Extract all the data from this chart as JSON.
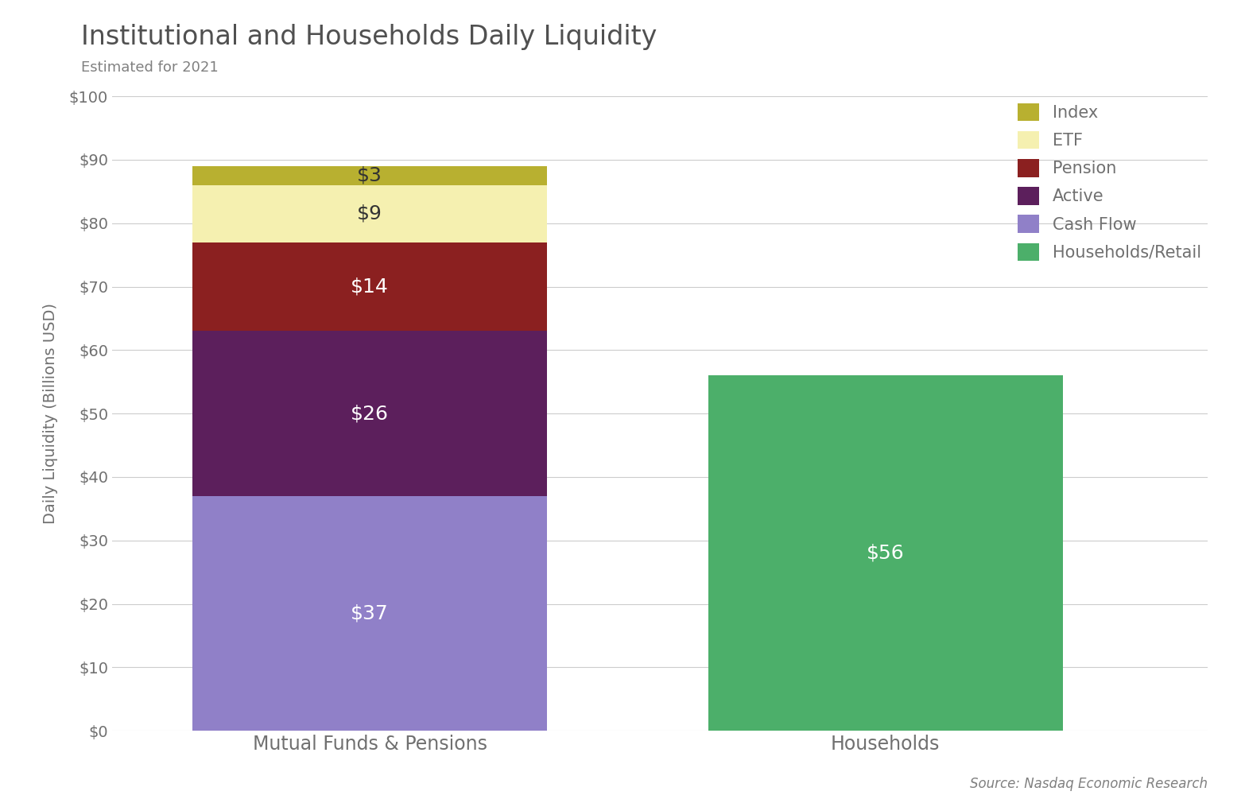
{
  "title": "Institutional and Households Daily Liquidity",
  "subtitle": "Estimated for 2021",
  "ylabel": "Daily Liquidity (Billions USD)",
  "source": "Source: Nasdaq Economic Research",
  "categories": [
    "Mutual Funds & Pensions",
    "Households"
  ],
  "segments": [
    {
      "label": "Cash Flow",
      "color": "#9080C8",
      "values": [
        37,
        0
      ],
      "text_colors": [
        "white",
        null
      ]
    },
    {
      "label": "Active",
      "color": "#5C1F5C",
      "values": [
        26,
        0
      ],
      "text_colors": [
        "white",
        null
      ]
    },
    {
      "label": "Pension",
      "color": "#8B2020",
      "values": [
        14,
        0
      ],
      "text_colors": [
        "white",
        null
      ]
    },
    {
      "label": "ETF",
      "color": "#F5F0B0",
      "values": [
        9,
        0
      ],
      "text_colors": [
        "#333333",
        null
      ]
    },
    {
      "label": "Index",
      "color": "#B8B030",
      "values": [
        3,
        0
      ],
      "text_colors": [
        "#333333",
        null
      ]
    },
    {
      "label": "Households/Retail",
      "color": "#4CAF6A",
      "values": [
        0,
        56
      ],
      "text_colors": [
        null,
        "white"
      ]
    }
  ],
  "legend_order": [
    "Index",
    "ETF",
    "Pension",
    "Active",
    "Cash Flow",
    "Households/Retail"
  ],
  "legend_colors": {
    "Index": "#B8B030",
    "ETF": "#F5F0B0",
    "Pension": "#8B2020",
    "Active": "#5C1F5C",
    "Cash Flow": "#9080C8",
    "Households/Retail": "#4CAF6A"
  },
  "ylim": [
    0,
    100
  ],
  "yticks": [
    0,
    10,
    20,
    30,
    40,
    50,
    60,
    70,
    80,
    90,
    100
  ],
  "ytick_labels": [
    "$0",
    "$10",
    "$20",
    "$30",
    "$40",
    "$50",
    "$60",
    "$70",
    "$80",
    "$90",
    "$100"
  ],
  "background_color": "#FFFFFF",
  "grid_color": "#CCCCCC",
  "title_fontsize": 24,
  "subtitle_fontsize": 13,
  "axis_label_fontsize": 14,
  "tick_fontsize": 14,
  "bar_label_fontsize": 18,
  "legend_fontsize": 15,
  "source_fontsize": 12,
  "bar_width": 0.55,
  "x_positions": [
    0.3,
    1.1
  ],
  "xlim": [
    -0.1,
    1.6
  ],
  "title_color": "#505050",
  "subtitle_color": "#808080",
  "tick_color": "#707070",
  "source_color": "#808080"
}
